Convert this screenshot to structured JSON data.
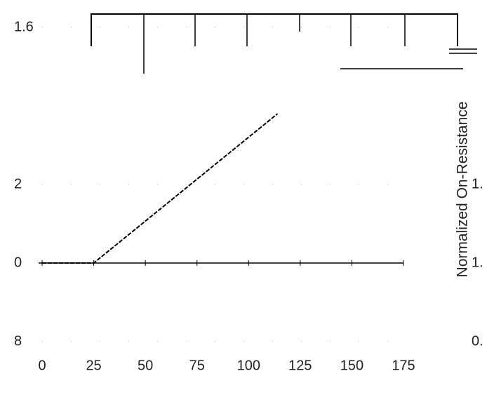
{
  "chart_data": {
    "type": "line",
    "x": [
      0,
      25,
      114
    ],
    "series": [
      {
        "color": "#000000",
        "values": [
          1.0,
          1.0,
          1.38
        ]
      }
    ],
    "xlim": [
      0,
      175
    ],
    "xticks": [
      0,
      25,
      50,
      75,
      100,
      125,
      150,
      175
    ],
    "ylim": [
      0.8,
      1.6
    ],
    "yticks": [
      {
        "value": 0.8,
        "label": "8"
      },
      {
        "value": 1.0,
        "label": "0"
      },
      {
        "value": 1.2,
        "label": "2"
      },
      1.6
    ],
    "y2lim": [
      0.8,
      1.6
    ],
    "y2ticks": [
      {
        "value": 0.8,
        "label": "0."
      },
      {
        "value": 1.0,
        "label": "1."
      },
      {
        "value": 1.2,
        "label": "1."
      }
    ],
    "y2label": "Normalized On-Resistance",
    "grid": true
  }
}
